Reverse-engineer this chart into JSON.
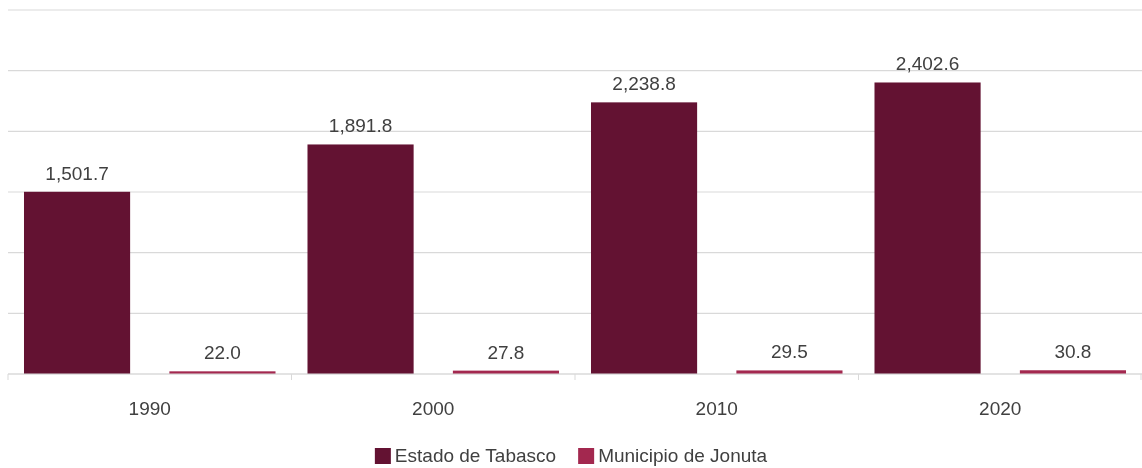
{
  "chart_data": {
    "type": "bar",
    "categories": [
      "1990",
      "2000",
      "2010",
      "2020"
    ],
    "series": [
      {
        "name": "Estado de Tabasco",
        "color": "#631232",
        "values": [
          1501.7,
          1891.8,
          2238.8,
          2402.6
        ],
        "value_labels": [
          "1,501.7",
          "1,891.8",
          "2,238.8",
          "2,402.6"
        ]
      },
      {
        "name": "Municipio de Jonuta",
        "color": "#a3284f",
        "values": [
          22.0,
          27.8,
          29.5,
          30.8
        ],
        "value_labels": [
          "22.0",
          "27.8",
          "29.5",
          "30.8"
        ]
      }
    ],
    "ylim": [
      0,
      3000
    ],
    "yticks": [
      {
        "value": 0,
        "label": null
      },
      {
        "value": 500,
        "label": null
      },
      {
        "value": 1000,
        "label": null
      },
      {
        "value": 1500,
        "label": null
      },
      {
        "value": 2000,
        "label": null
      },
      {
        "value": 2500,
        "label": null
      },
      {
        "value": 3000,
        "label": null
      }
    ],
    "tick_labels": "x",
    "grid": "y",
    "legend": "bottom"
  }
}
